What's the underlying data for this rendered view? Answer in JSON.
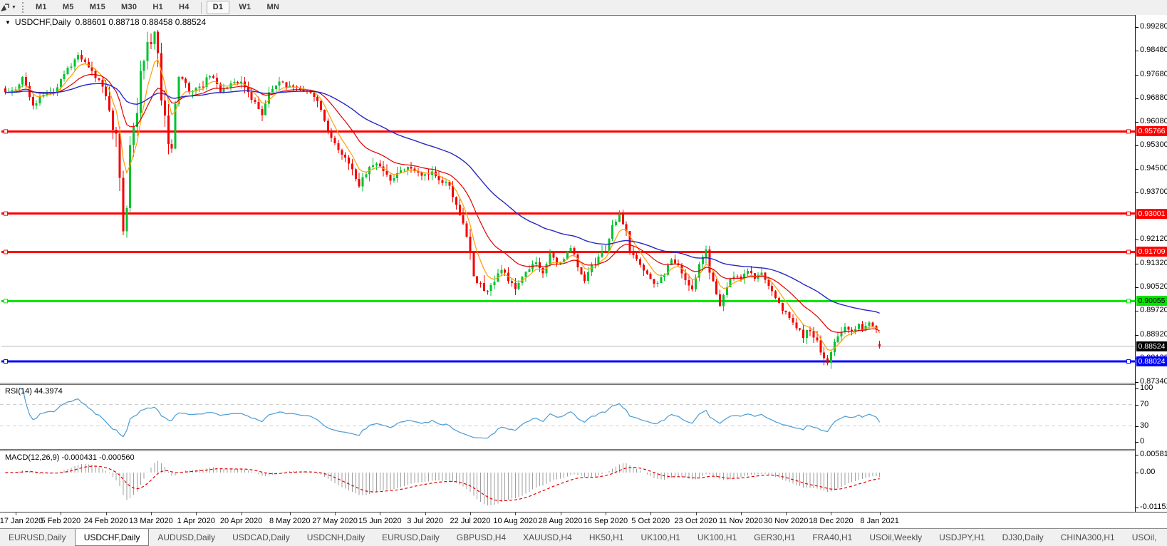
{
  "toolbar": {
    "nav_icon": "chart-cursor-icon",
    "dropdown_icon": "caret-down-icon",
    "timeframes": [
      "M1",
      "M5",
      "M15",
      "M30",
      "H1",
      "H4",
      "D1",
      "W1",
      "MN"
    ],
    "selected_timeframe": "D1"
  },
  "header": {
    "collapse_icon": "triangle-down-icon",
    "symbol": "USDCHF,Daily",
    "ohlc": "0.88601 0.88718 0.88458 0.88524"
  },
  "colors": {
    "bull": "#00c230",
    "bear": "#f40000",
    "ma_fast": "#ff9d00",
    "ma_mid": "#e00000",
    "ma_slow": "#2727c4",
    "rsi_line": "#4a9bd4",
    "macd_hist": "#9e9e9e",
    "macd_signal": "#e00000",
    "hline_red": "#ff0000",
    "hline_green": "#00e600",
    "hline_blue": "#0000ff",
    "current_price_line": "#bbbbbb",
    "current_badge_bg": "#000000"
  },
  "price_axis": {
    "labels": [
      "0.99280",
      "0.98480",
      "0.97680",
      "0.96880",
      "0.96080",
      "0.95300",
      "0.94500",
      "0.93700",
      "0.92900",
      "0.92120",
      "0.91320",
      "0.90520",
      "0.89720",
      "0.88920",
      "0.88120",
      "0.87340"
    ]
  },
  "hlines": [
    {
      "price": 0.95766,
      "label": "0.95766",
      "color": "#ff0000",
      "text_color": "#ffffff",
      "width": 3
    },
    {
      "price": 0.93001,
      "label": "0.93001",
      "color": "#ff0000",
      "text_color": "#ffffff",
      "width": 3
    },
    {
      "price": 0.91709,
      "label": "0.91709",
      "color": "#ff0000",
      "text_color": "#ffffff",
      "width": 3
    },
    {
      "price": 0.90055,
      "label": "0.90055",
      "color": "#00e600",
      "text_color": "#000000",
      "width": 3
    },
    {
      "price": 0.88024,
      "label": "0.88024",
      "color": "#0000ff",
      "text_color": "#ffffff",
      "width": 3
    }
  ],
  "current_price": {
    "value": 0.88524,
    "label": "0.88524"
  },
  "chart_data": {
    "type": "candlestick",
    "title": "USDCHF,Daily",
    "last_candle": {
      "open": 0.88601,
      "high": 0.88718,
      "low": 0.88458,
      "close": 0.88524
    },
    "ylim": [
      0.8733,
      0.9959
    ],
    "clamp": [
      0.8757,
      0.9918
    ],
    "x_labels": [
      "17 Jan 2020",
      "5 Feb 2020",
      "24 Feb 2020",
      "13 Mar 2020",
      "1 Apr 2020",
      "20 Apr 2020",
      "8 May 2020",
      "27 May 2020",
      "15 Jun 2020",
      "3 Jul 2020",
      "22 Jul 2020",
      "10 Aug 2020",
      "28 Aug 2020",
      "16 Sep 2020",
      "5 Oct 2020",
      "23 Oct 2020",
      "11 Nov 2020",
      "30 Nov 2020",
      "18 Dec 2020",
      "8 Jan 2021"
    ],
    "x_label_days": [
      0,
      13,
      26,
      39,
      52,
      65,
      79,
      92,
      105,
      118,
      131,
      144,
      157,
      170,
      183,
      196,
      209,
      222,
      235,
      249
    ],
    "candles_approx": {
      "n": 253,
      "d_start": -3,
      "close_anchors": [
        [
          -3,
          0.971
        ],
        [
          0,
          0.9718
        ],
        [
          2,
          0.9755
        ],
        [
          5,
          0.9663
        ],
        [
          8,
          0.97
        ],
        [
          11,
          0.9712
        ],
        [
          14,
          0.977
        ],
        [
          18,
          0.983
        ],
        [
          21,
          0.979
        ],
        [
          24,
          0.9745
        ],
        [
          26,
          0.97
        ],
        [
          27,
          0.964
        ],
        [
          29,
          0.955
        ],
        [
          30,
          0.941
        ],
        [
          31,
          0.926
        ],
        [
          32,
          0.933
        ],
        [
          33,
          0.952
        ],
        [
          35,
          0.962
        ],
        [
          36,
          0.976
        ],
        [
          38,
          0.987
        ],
        [
          40,
          0.9905
        ],
        [
          41,
          0.983
        ],
        [
          42,
          0.97
        ],
        [
          44,
          0.9545
        ],
        [
          45,
          0.951
        ],
        [
          46,
          0.966
        ],
        [
          47,
          0.977
        ],
        [
          49,
          0.973
        ],
        [
          51,
          0.9705
        ],
        [
          54,
          0.973
        ],
        [
          56,
          0.977
        ],
        [
          59,
          0.9715
        ],
        [
          62,
          0.9735
        ],
        [
          65,
          0.9745
        ],
        [
          68,
          0.969
        ],
        [
          71,
          0.9635
        ],
        [
          73,
          0.9705
        ],
        [
          76,
          0.9745
        ],
        [
          79,
          0.9725
        ],
        [
          83,
          0.9715
        ],
        [
          86,
          0.97
        ],
        [
          88,
          0.9645
        ],
        [
          91,
          0.956
        ],
        [
          94,
          0.9505
        ],
        [
          97,
          0.9445
        ],
        [
          99,
          0.939
        ],
        [
          101,
          0.944
        ],
        [
          103,
          0.947
        ],
        [
          106,
          0.945
        ],
        [
          108,
          0.942
        ],
        [
          111,
          0.944
        ],
        [
          114,
          0.9455
        ],
        [
          117,
          0.943
        ],
        [
          120,
          0.944
        ],
        [
          122,
          0.942
        ],
        [
          125,
          0.939
        ],
        [
          127,
          0.934
        ],
        [
          129,
          0.927
        ],
        [
          131,
          0.918
        ],
        [
          132,
          0.909
        ],
        [
          134,
          0.906
        ],
        [
          136,
          0.903
        ],
        [
          138,
          0.908
        ],
        [
          140,
          0.911
        ],
        [
          142,
          0.908
        ],
        [
          144,
          0.905
        ],
        [
          146,
          0.909
        ],
        [
          148,
          0.911
        ],
        [
          150,
          0.914
        ],
        [
          152,
          0.9095
        ],
        [
          154,
          0.916
        ],
        [
          156,
          0.913
        ],
        [
          158,
          0.915
        ],
        [
          160,
          0.919
        ],
        [
          162,
          0.912
        ],
        [
          164,
          0.908
        ],
        [
          166,
          0.912
        ],
        [
          168,
          0.915
        ],
        [
          170,
          0.918
        ],
        [
          172,
          0.926
        ],
        [
          174,
          0.9295
        ],
        [
          176,
          0.924
        ],
        [
          177,
          0.918
        ],
        [
          179,
          0.915
        ],
        [
          181,
          0.911
        ],
        [
          183,
          0.908
        ],
        [
          185,
          0.906
        ],
        [
          187,
          0.91
        ],
        [
          189,
          0.915
        ],
        [
          191,
          0.912
        ],
        [
          193,
          0.908
        ],
        [
          195,
          0.905
        ],
        [
          197,
          0.913
        ],
        [
          199,
          0.917
        ],
        [
          200,
          0.91
        ],
        [
          202,
          0.903
        ],
        [
          203,
          0.8995
        ],
        [
          205,
          0.906
        ],
        [
          207,
          0.909
        ],
        [
          209,
          0.908
        ],
        [
          211,
          0.911
        ],
        [
          213,
          0.9085
        ],
        [
          215,
          0.9105
        ],
        [
          217,
          0.906
        ],
        [
          219,
          0.902
        ],
        [
          221,
          0.898
        ],
        [
          223,
          0.895
        ],
        [
          225,
          0.892
        ],
        [
          227,
          0.889
        ],
        [
          229,
          0.891
        ],
        [
          231,
          0.887
        ],
        [
          233,
          0.881
        ],
        [
          234,
          0.879
        ],
        [
          235,
          0.884
        ],
        [
          236,
          0.887
        ],
        [
          238,
          0.89
        ],
        [
          239,
          0.8925
        ],
        [
          241,
          0.8905
        ],
        [
          243,
          0.893
        ],
        [
          244,
          0.891
        ],
        [
          246,
          0.8935
        ],
        [
          248,
          0.8905
        ],
        [
          249,
          0.88524
        ]
      ],
      "range_anchors": [
        [
          -3,
          0.0035
        ],
        [
          20,
          0.004
        ],
        [
          26,
          0.006
        ],
        [
          28,
          0.011
        ],
        [
          31,
          0.015
        ],
        [
          36,
          0.013
        ],
        [
          40,
          0.012
        ],
        [
          45,
          0.009
        ],
        [
          48,
          0.007
        ],
        [
          55,
          0.0055
        ],
        [
          70,
          0.0048
        ],
        [
          85,
          0.0045
        ],
        [
          95,
          0.006
        ],
        [
          99,
          0.0065
        ],
        [
          110,
          0.005
        ],
        [
          125,
          0.0048
        ],
        [
          130,
          0.0085
        ],
        [
          134,
          0.007
        ],
        [
          140,
          0.005
        ],
        [
          155,
          0.005
        ],
        [
          172,
          0.0058
        ],
        [
          180,
          0.0045
        ],
        [
          190,
          0.0042
        ],
        [
          198,
          0.006
        ],
        [
          203,
          0.0055
        ],
        [
          212,
          0.004
        ],
        [
          225,
          0.0045
        ],
        [
          233,
          0.0062
        ],
        [
          240,
          0.0042
        ],
        [
          249,
          0.0026
        ]
      ]
    },
    "moving_averages": [
      {
        "name": "fast",
        "period": 6,
        "color": "#ff9d00"
      },
      {
        "name": "mid",
        "period": 18,
        "color": "#e00000"
      },
      {
        "name": "slow",
        "period": 52,
        "color": "#2727c4"
      }
    ],
    "rsi": {
      "label": "RSI(14) 44.3974",
      "period": 14,
      "value": 44.3974,
      "axis_labels": [
        "100",
        "70",
        "30",
        "0"
      ],
      "axis_values": [
        100,
        70,
        30,
        0
      ],
      "dashed_levels": [
        70,
        30
      ],
      "ylim": [
        0,
        100
      ]
    },
    "macd": {
      "label": "MACD(12,26,9) -0.000431 -0.000560",
      "fast": 12,
      "slow": 26,
      "signal_period": 9,
      "value": -0.000431,
      "signal_value": -0.00056,
      "axis_labels": [
        "0.005818",
        "0.00",
        "-0.011514"
      ],
      "axis_values": [
        0.005818,
        0.0,
        -0.011514
      ],
      "render_ylim": [
        -0.0128,
        0.0071
      ]
    }
  },
  "tabs": {
    "items": [
      "EURUSD,Daily",
      "USDCHF,Daily",
      "AUDUSD,Daily",
      "USDCAD,Daily",
      "USDCNH,Daily",
      "EURUSD,Daily",
      "GBPUSD,H4",
      "XAUUSD,H4",
      "HK50,H1",
      "UK100,H1",
      "UK100,H1",
      "GER30,H1",
      "FRA40,H1",
      "USOil,Weekly",
      "USDJPY,H1",
      "DJ30,Daily",
      "CHINA300,H1",
      "USOil,"
    ],
    "active_index": 1,
    "scroll_left_icon": "triangle-left-icon",
    "scroll_right_icon": "triangle-right-icon"
  }
}
